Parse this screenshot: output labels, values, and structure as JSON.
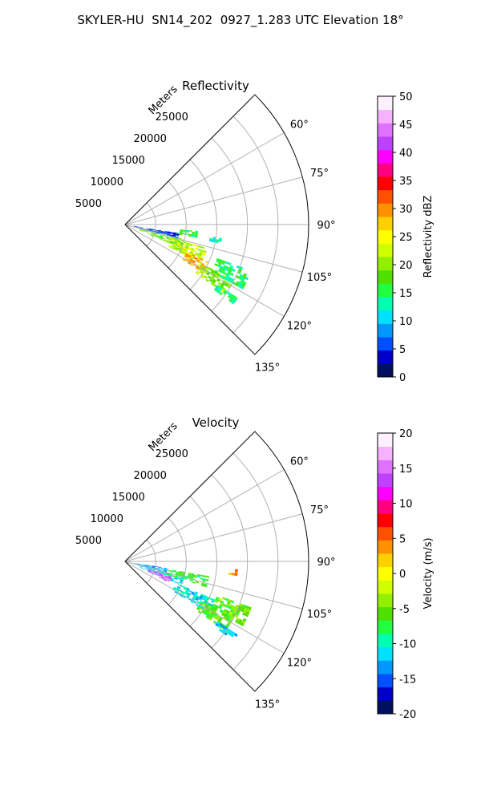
{
  "figure": {
    "suptitle": "SKYLER-HU  SN14_202  0927_1.283 UTC Elevation 18°"
  },
  "chart_data": [
    {
      "type": "heatmap",
      "subtype": "polar-sector PPI",
      "title": "Reflectivity",
      "range_label": "Meters",
      "range_ticks": [
        5000,
        10000,
        15000,
        20000,
        25000
      ],
      "range_max": 30000,
      "azimuth_ticks": [
        "60°",
        "75°",
        "90°",
        "105°",
        "120°",
        "135°"
      ],
      "azimuth_range_deg": [
        45,
        135
      ],
      "grid": true,
      "colorbar": {
        "label": "Reflectivity dBZ",
        "min": 0,
        "max": 50,
        "ticks": [
          0,
          5,
          10,
          15,
          20,
          25,
          30,
          35,
          40,
          45,
          50
        ],
        "colormap": [
          "#001060",
          "#0000c8",
          "#0050ff",
          "#0098ff",
          "#00e0ff",
          "#00ffb0",
          "#20ff40",
          "#50e000",
          "#90f000",
          "#d0ff00",
          "#ffff00",
          "#ffd000",
          "#ff9000",
          "#ff5000",
          "#ff0000",
          "#ff0080",
          "#ff00ff",
          "#c040ff",
          "#e070ff",
          "#f8b0ff",
          "#fff0ff"
        ]
      },
      "echoes": [
        {
          "az_start": 99,
          "az_end": 104,
          "r_start": 1500,
          "r_end": 9000,
          "value": 5
        },
        {
          "az_start": 104,
          "az_end": 112,
          "r_start": 2500,
          "r_end": 10000,
          "value": 18
        },
        {
          "az_start": 106,
          "az_end": 116,
          "r_start": 8000,
          "r_end": 14000,
          "value": 22
        },
        {
          "az_start": 114,
          "az_end": 121,
          "r_start": 11000,
          "r_end": 15000,
          "value": 28
        },
        {
          "az_start": 117,
          "az_end": 124,
          "r_start": 14000,
          "r_end": 20000,
          "value": 20
        },
        {
          "az_start": 110,
          "az_end": 118,
          "r_start": 16000,
          "r_end": 22000,
          "value": 15
        },
        {
          "az_start": 95,
          "az_end": 100,
          "r_start": 9000,
          "r_end": 12000,
          "value": 16
        },
        {
          "az_start": 123,
          "az_end": 126,
          "r_start": 18000,
          "r_end": 22000,
          "value": 14
        },
        {
          "az_start": 98,
          "az_end": 101,
          "r_start": 14000,
          "r_end": 16000,
          "value": 12
        }
      ]
    },
    {
      "type": "heatmap",
      "subtype": "polar-sector PPI",
      "title": "Velocity",
      "range_label": "Meters",
      "range_ticks": [
        5000,
        10000,
        15000,
        20000,
        25000
      ],
      "range_max": 30000,
      "azimuth_ticks": [
        "60°",
        "75°",
        "90°",
        "105°",
        "120°",
        "135°"
      ],
      "azimuth_range_deg": [
        45,
        135
      ],
      "grid": true,
      "colorbar": {
        "label": "Velocity (m/s)",
        "min": -20,
        "max": 20,
        "ticks": [
          -20,
          -15,
          -10,
          -5,
          0,
          5,
          10,
          15,
          20
        ],
        "colormap": [
          "#001060",
          "#0000c8",
          "#0050ff",
          "#0098ff",
          "#00e0ff",
          "#00ffb0",
          "#20ff40",
          "#50e000",
          "#90f000",
          "#d0ff00",
          "#ffff00",
          "#ffd000",
          "#ff9000",
          "#ff5000",
          "#ff0000",
          "#ff0080",
          "#ff00ff",
          "#c040ff",
          "#e070ff",
          "#f8b0ff",
          "#fff0ff"
        ]
      },
      "echoes": [
        {
          "az_start": 99,
          "az_end": 104,
          "r_start": 1500,
          "r_end": 7000,
          "value": -13
        },
        {
          "az_start": 104,
          "az_end": 112,
          "r_start": 2500,
          "r_end": 10000,
          "value": -11
        },
        {
          "az_start": 108,
          "az_end": 115,
          "r_start": 4000,
          "r_end": 8000,
          "value": 15
        },
        {
          "az_start": 100,
          "az_end": 107,
          "r_start": 7000,
          "r_end": 14000,
          "value": -7
        },
        {
          "az_start": 113,
          "az_end": 121,
          "r_start": 9000,
          "r_end": 16000,
          "value": -11
        },
        {
          "az_start": 117,
          "az_end": 124,
          "r_start": 14000,
          "r_end": 20000,
          "value": -6
        },
        {
          "az_start": 110,
          "az_end": 118,
          "r_start": 16000,
          "r_end": 22000,
          "value": -5
        },
        {
          "az_start": 94,
          "az_end": 97,
          "r_start": 17000,
          "r_end": 18500,
          "value": 5
        },
        {
          "az_start": 123,
          "az_end": 126,
          "r_start": 18000,
          "r_end": 22000,
          "value": -12
        }
      ]
    }
  ]
}
